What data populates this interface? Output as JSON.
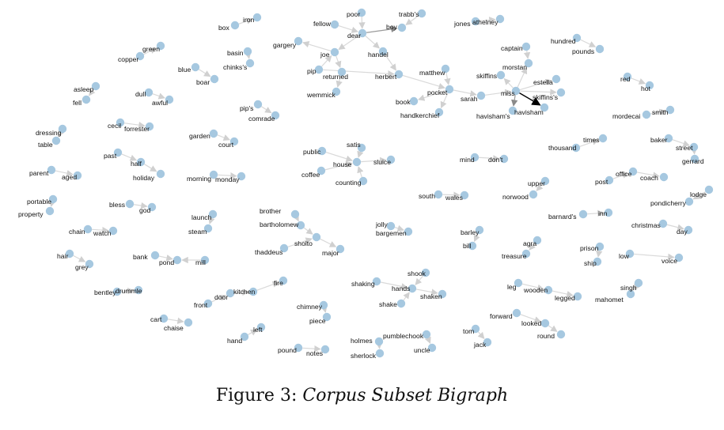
{
  "caption": {
    "prefix": "Figure 3:",
    "title": "Corpus Subset Bigraph"
  },
  "graph": {
    "node_color": "#a6c8e0",
    "edge_color": "#d9d9d9",
    "edge_color_dark": "#9a9a9a",
    "edge_color_highlight": "#000000",
    "nodes": [
      "box",
      "iron",
      "poor",
      "trabb's",
      "fellow",
      "boy",
      "dear",
      "jones",
      "athelney",
      "gargery",
      "joe",
      "handel",
      "basin",
      "chinks's",
      "pip",
      "returned",
      "herbert",
      "matthew",
      "wemmick",
      "pocket",
      "book",
      "handkerchief",
      "sarah",
      "captain",
      "morstan",
      "skiffins",
      "estella",
      "miss",
      "skiffins's",
      "havisham's",
      "havisham",
      "hundred",
      "pounds",
      "red",
      "hot",
      "mordecai",
      "smith",
      "copper",
      "green",
      "blue",
      "boar",
      "asleep",
      "fell",
      "dull",
      "awful",
      "cecil",
      "forrester",
      "pip's",
      "comrade",
      "garden",
      "court",
      "dressing",
      "table",
      "past",
      "half",
      "holiday",
      "parent",
      "aged",
      "morning",
      "monday",
      "portable",
      "property",
      "bless",
      "god",
      "launch",
      "steam",
      "chain",
      "watch",
      "hair",
      "grey",
      "bank",
      "pond",
      "mill",
      "bentley",
      "drummle",
      "cart",
      "chaise",
      "front",
      "door",
      "kitchen",
      "fire",
      "hand",
      "left",
      "public",
      "satis",
      "house",
      "sluice",
      "coffee",
      "counting",
      "brother",
      "bartholomew",
      "sholto",
      "major",
      "thaddeus",
      "chimney",
      "piece",
      "pound",
      "notes",
      "jolly",
      "bargemen",
      "shaking",
      "hands",
      "shook",
      "shaken",
      "shake",
      "holmes",
      "pumblechook",
      "sherlock",
      "uncle",
      "mind",
      "don't",
      "south",
      "wales",
      "barley",
      "bill",
      "agra",
      "treasure",
      "tom",
      "jack",
      "thousand",
      "times",
      "upper",
      "norwood",
      "barnard's",
      "inn",
      "post",
      "office",
      "coach",
      "baker",
      "street",
      "gerrard",
      "lodge",
      "pondicherry",
      "christmas",
      "day",
      "prison",
      "ship",
      "low",
      "voice",
      "leg",
      "wooden",
      "legged",
      "forward",
      "looked",
      "round",
      "singh",
      "mahomet"
    ],
    "edges": [
      [
        "box",
        "iron"
      ],
      [
        "fellow",
        "dear"
      ],
      [
        "poor",
        "dear"
      ],
      [
        "trabb's",
        "boy"
      ],
      [
        "dear",
        "boy"
      ],
      [
        "jones",
        "athelney"
      ],
      [
        "dear",
        "joe"
      ],
      [
        "dear",
        "handel"
      ],
      [
        "joe",
        "gargery"
      ],
      [
        "joe",
        "returned"
      ],
      [
        "pip",
        "joe"
      ],
      [
        "handel",
        "herbert"
      ],
      [
        "basin",
        "chinks's"
      ],
      [
        "pip",
        "herbert"
      ],
      [
        "returned",
        "wemmick"
      ],
      [
        "herbert",
        "pocket"
      ],
      [
        "matthew",
        "pocket"
      ],
      [
        "pocket",
        "book"
      ],
      [
        "pocket",
        "handkerchief"
      ],
      [
        "pocket",
        "sarah"
      ],
      [
        "sarah",
        "miss"
      ],
      [
        "captain",
        "morstan"
      ],
      [
        "miss",
        "morstan"
      ],
      [
        "miss",
        "skiffins"
      ],
      [
        "miss",
        "estella"
      ],
      [
        "miss",
        "skiffins's"
      ],
      [
        "miss",
        "havisham's"
      ],
      [
        "miss",
        "havisham"
      ],
      [
        "hundred",
        "pounds"
      ],
      [
        "red",
        "hot"
      ],
      [
        "mordecai",
        "smith"
      ],
      [
        "copper",
        "green"
      ],
      [
        "blue",
        "boar"
      ],
      [
        "asleep",
        "fell"
      ],
      [
        "dull",
        "awful"
      ],
      [
        "cecil",
        "forrester"
      ],
      [
        "pip's",
        "comrade"
      ],
      [
        "garden",
        "court"
      ],
      [
        "dressing",
        "table"
      ],
      [
        "past",
        "half"
      ],
      [
        "half",
        "holiday"
      ],
      [
        "parent",
        "aged"
      ],
      [
        "morning",
        "monday"
      ],
      [
        "portable",
        "property"
      ],
      [
        "bless",
        "god"
      ],
      [
        "launch",
        "steam"
      ],
      [
        "chain",
        "watch"
      ],
      [
        "hair",
        "grey"
      ],
      [
        "bank",
        "pond"
      ],
      [
        "mill",
        "pond"
      ],
      [
        "bentley",
        "drummle"
      ],
      [
        "cart",
        "chaise"
      ],
      [
        "front",
        "door"
      ],
      [
        "door",
        "kitchen"
      ],
      [
        "kitchen",
        "fire"
      ],
      [
        "hand",
        "left"
      ],
      [
        "public",
        "house"
      ],
      [
        "satis",
        "house"
      ],
      [
        "house",
        "sluice"
      ],
      [
        "coffee",
        "house"
      ],
      [
        "counting",
        "house"
      ],
      [
        "brother",
        "bartholomew"
      ],
      [
        "bartholomew",
        "sholto"
      ],
      [
        "sholto",
        "major"
      ],
      [
        "thaddeus",
        "sholto"
      ],
      [
        "chimney",
        "piece"
      ],
      [
        "pound",
        "notes"
      ],
      [
        "jolly",
        "bargemen"
      ],
      [
        "shaking",
        "hands"
      ],
      [
        "shook",
        "hands"
      ],
      [
        "hands",
        "shaken"
      ],
      [
        "shake",
        "hands"
      ],
      [
        "holmes",
        "sherlock"
      ],
      [
        "pumblechook",
        "uncle"
      ],
      [
        "mind",
        "don't"
      ],
      [
        "south",
        "wales"
      ],
      [
        "barley",
        "bill"
      ],
      [
        "agra",
        "treasure"
      ],
      [
        "tom",
        "jack"
      ],
      [
        "thousand",
        "times"
      ],
      [
        "upper",
        "norwood"
      ],
      [
        "barnard's",
        "inn"
      ],
      [
        "post",
        "office"
      ],
      [
        "office",
        "coach"
      ],
      [
        "baker",
        "street"
      ],
      [
        "street",
        "gerrard"
      ],
      [
        "lodge",
        "pondicherry"
      ],
      [
        "christmas",
        "day"
      ],
      [
        "prison",
        "ship"
      ],
      [
        "low",
        "voice"
      ],
      [
        "leg",
        "wooden"
      ],
      [
        "wooden",
        "legged"
      ],
      [
        "forward",
        "looked"
      ],
      [
        "looked",
        "round"
      ],
      [
        "singh",
        "mahomet"
      ]
    ],
    "dark_edges": [
      [
        "dear",
        "boy"
      ],
      [
        "miss",
        "havisham's"
      ]
    ],
    "highlight_edges": [
      [
        "miss",
        "havisham"
      ]
    ]
  }
}
